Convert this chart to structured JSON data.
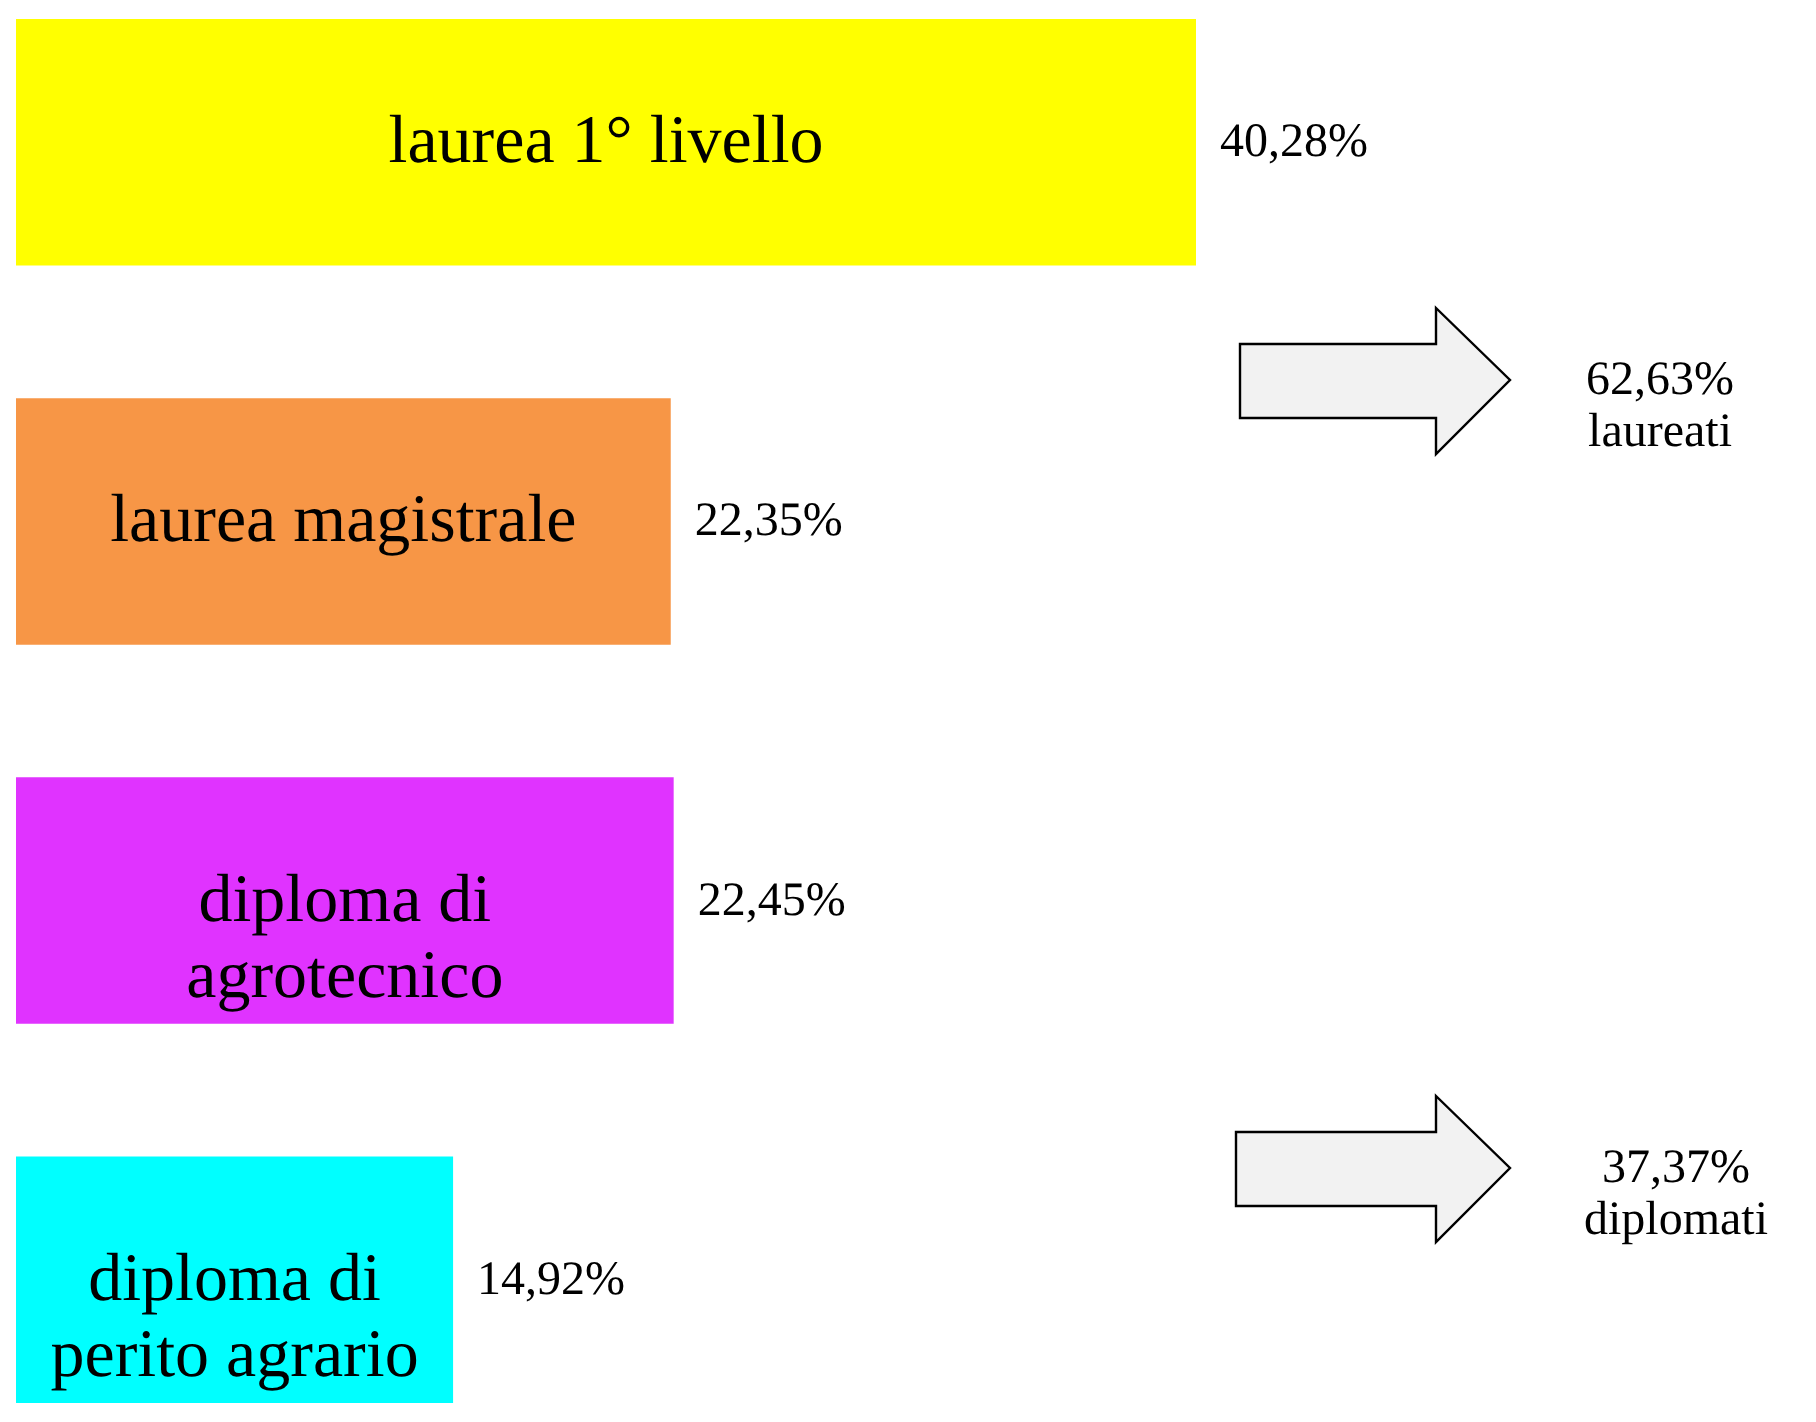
{
  "chart_data": {
    "type": "bar",
    "orientation": "horizontal",
    "categories": [
      "laurea 1° livello",
      "laurea magistrale",
      "diploma di agrotecnico",
      "diploma di perito agrario"
    ],
    "values": [
      40.28,
      22.35,
      22.45,
      14.92
    ],
    "colors": [
      "#ffff00",
      "#f79646",
      "#e033ff",
      "#00ffff"
    ],
    "value_labels": [
      "40,28%",
      "22,35%",
      "22,45%",
      "14,92%"
    ],
    "annotations": [
      "62,63% laureati",
      "37,37% diplomati"
    ]
  }
}
